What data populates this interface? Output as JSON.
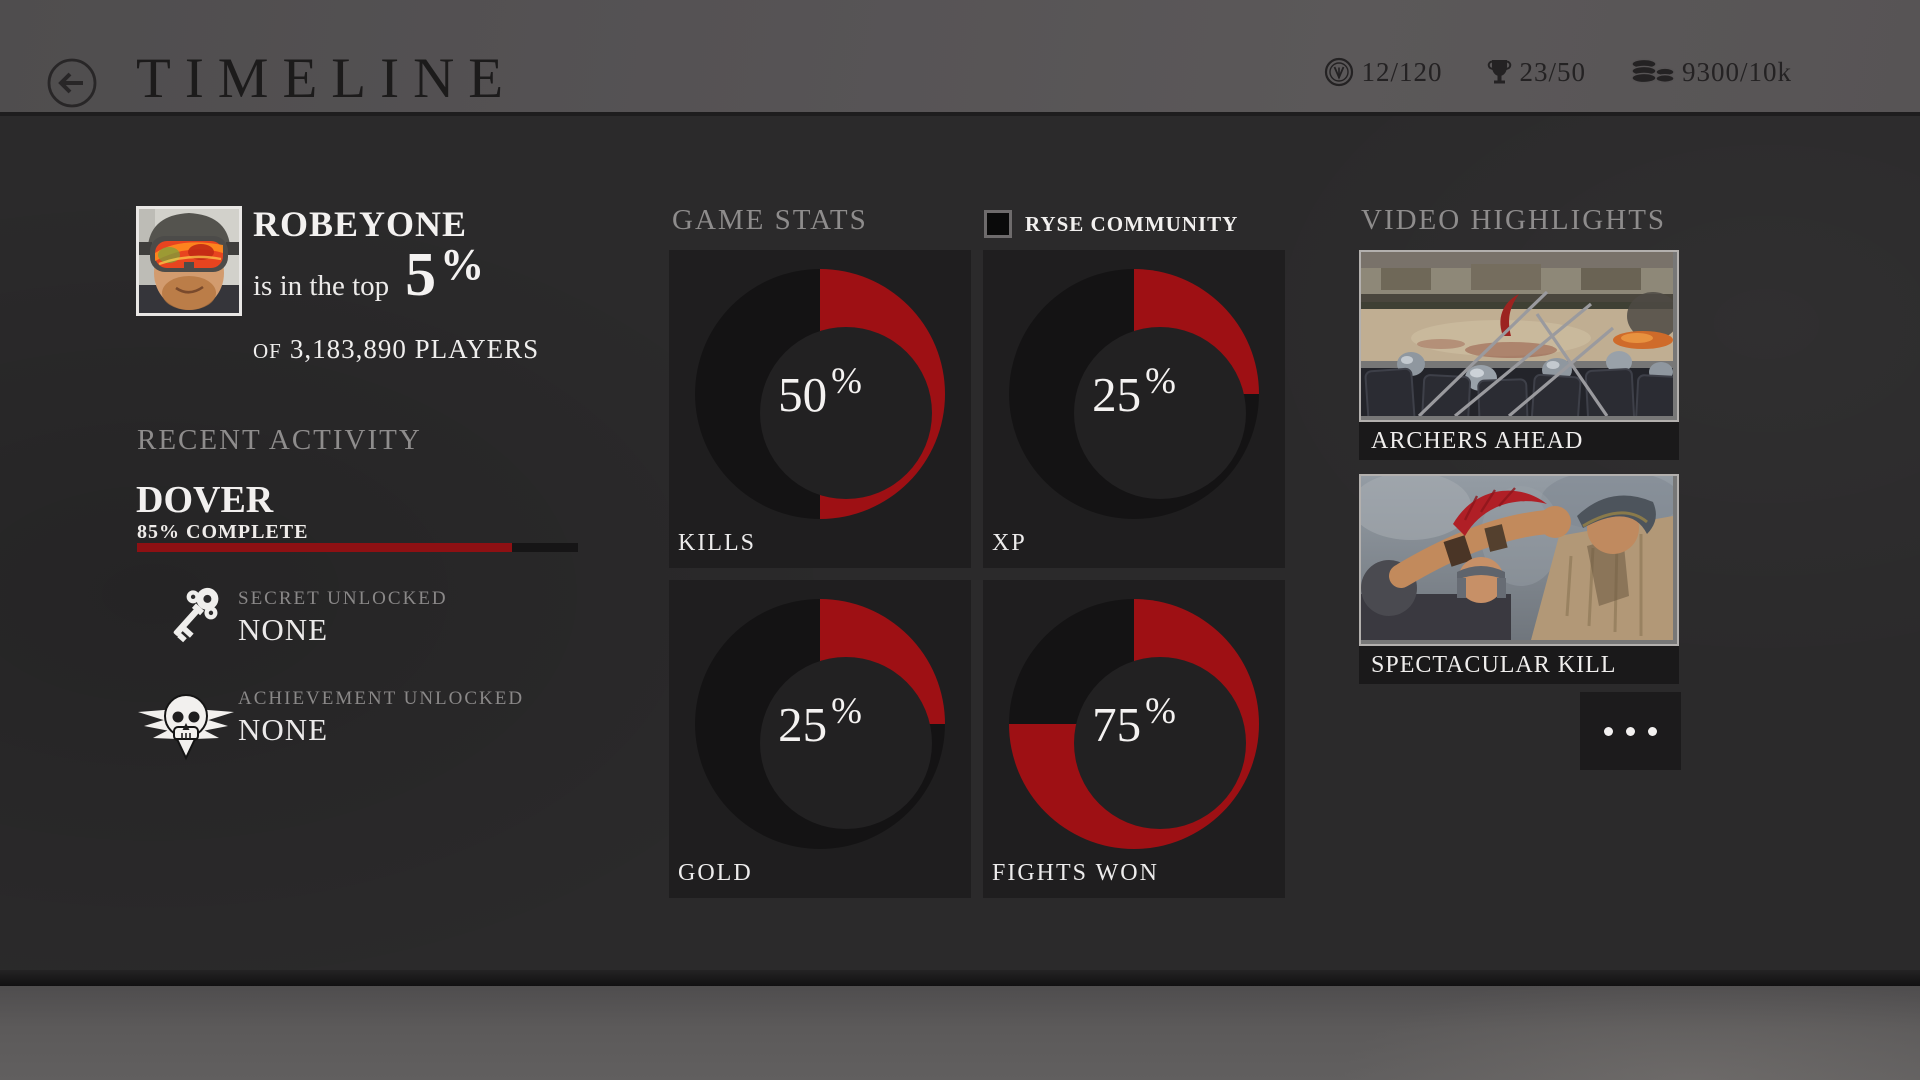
{
  "header": {
    "title": "TIMELINE",
    "metrics": [
      {
        "icon": "medal-icon",
        "value": "12/120"
      },
      {
        "icon": "trophy-icon",
        "value": "23/50"
      },
      {
        "icon": "coins-icon",
        "value": "9300/10k"
      }
    ]
  },
  "profile": {
    "name": "ROBEYONE",
    "rank_prefix": "is in the top",
    "rank_percent": "5",
    "rank_percent_sign": "%",
    "of_label": "OF",
    "players_count": "3,183,890",
    "players_label": "PLAYERS"
  },
  "recent_activity": {
    "heading": "RECENT ACTIVITY",
    "mission": "DOVER",
    "progress_label": "85% COMPLETE",
    "progress_percent": 85,
    "secret": {
      "label": "SECRET UNLOCKED",
      "value": "NONE"
    },
    "achievement": {
      "label": "ACHIEVEMENT UNLOCKED",
      "value": "NONE"
    }
  },
  "game_stats": {
    "heading": "GAME STATS",
    "community_label": "RYSE COMMUNITY",
    "community_checked": false
  },
  "chart_data": {
    "type": "donut-grid",
    "title": "GAME STATS",
    "unit": "%",
    "series": [
      {
        "label": "KILLS",
        "value": 50
      },
      {
        "label": "XP",
        "value": 25
      },
      {
        "label": "GOLD",
        "value": 25
      },
      {
        "label": "FIGHTS WON",
        "value": 75
      }
    ],
    "start_angle_deg": 0,
    "direction": "clockwise",
    "colors": {
      "fill": "#9e1014",
      "track": "#141314",
      "hole": "#222122"
    }
  },
  "video_highlights": {
    "heading": "VIDEO HIGHLIGHTS",
    "items": [
      {
        "title": "ARCHERS AHEAD"
      },
      {
        "title": "SPECTACULAR KILL"
      }
    ]
  },
  "colors": {
    "accent_red": "#9e1014",
    "progress_red": "#8e1013",
    "header_gray": "#565354",
    "panel_dark": "#1f1e1f",
    "background": "#2b2a2b"
  }
}
